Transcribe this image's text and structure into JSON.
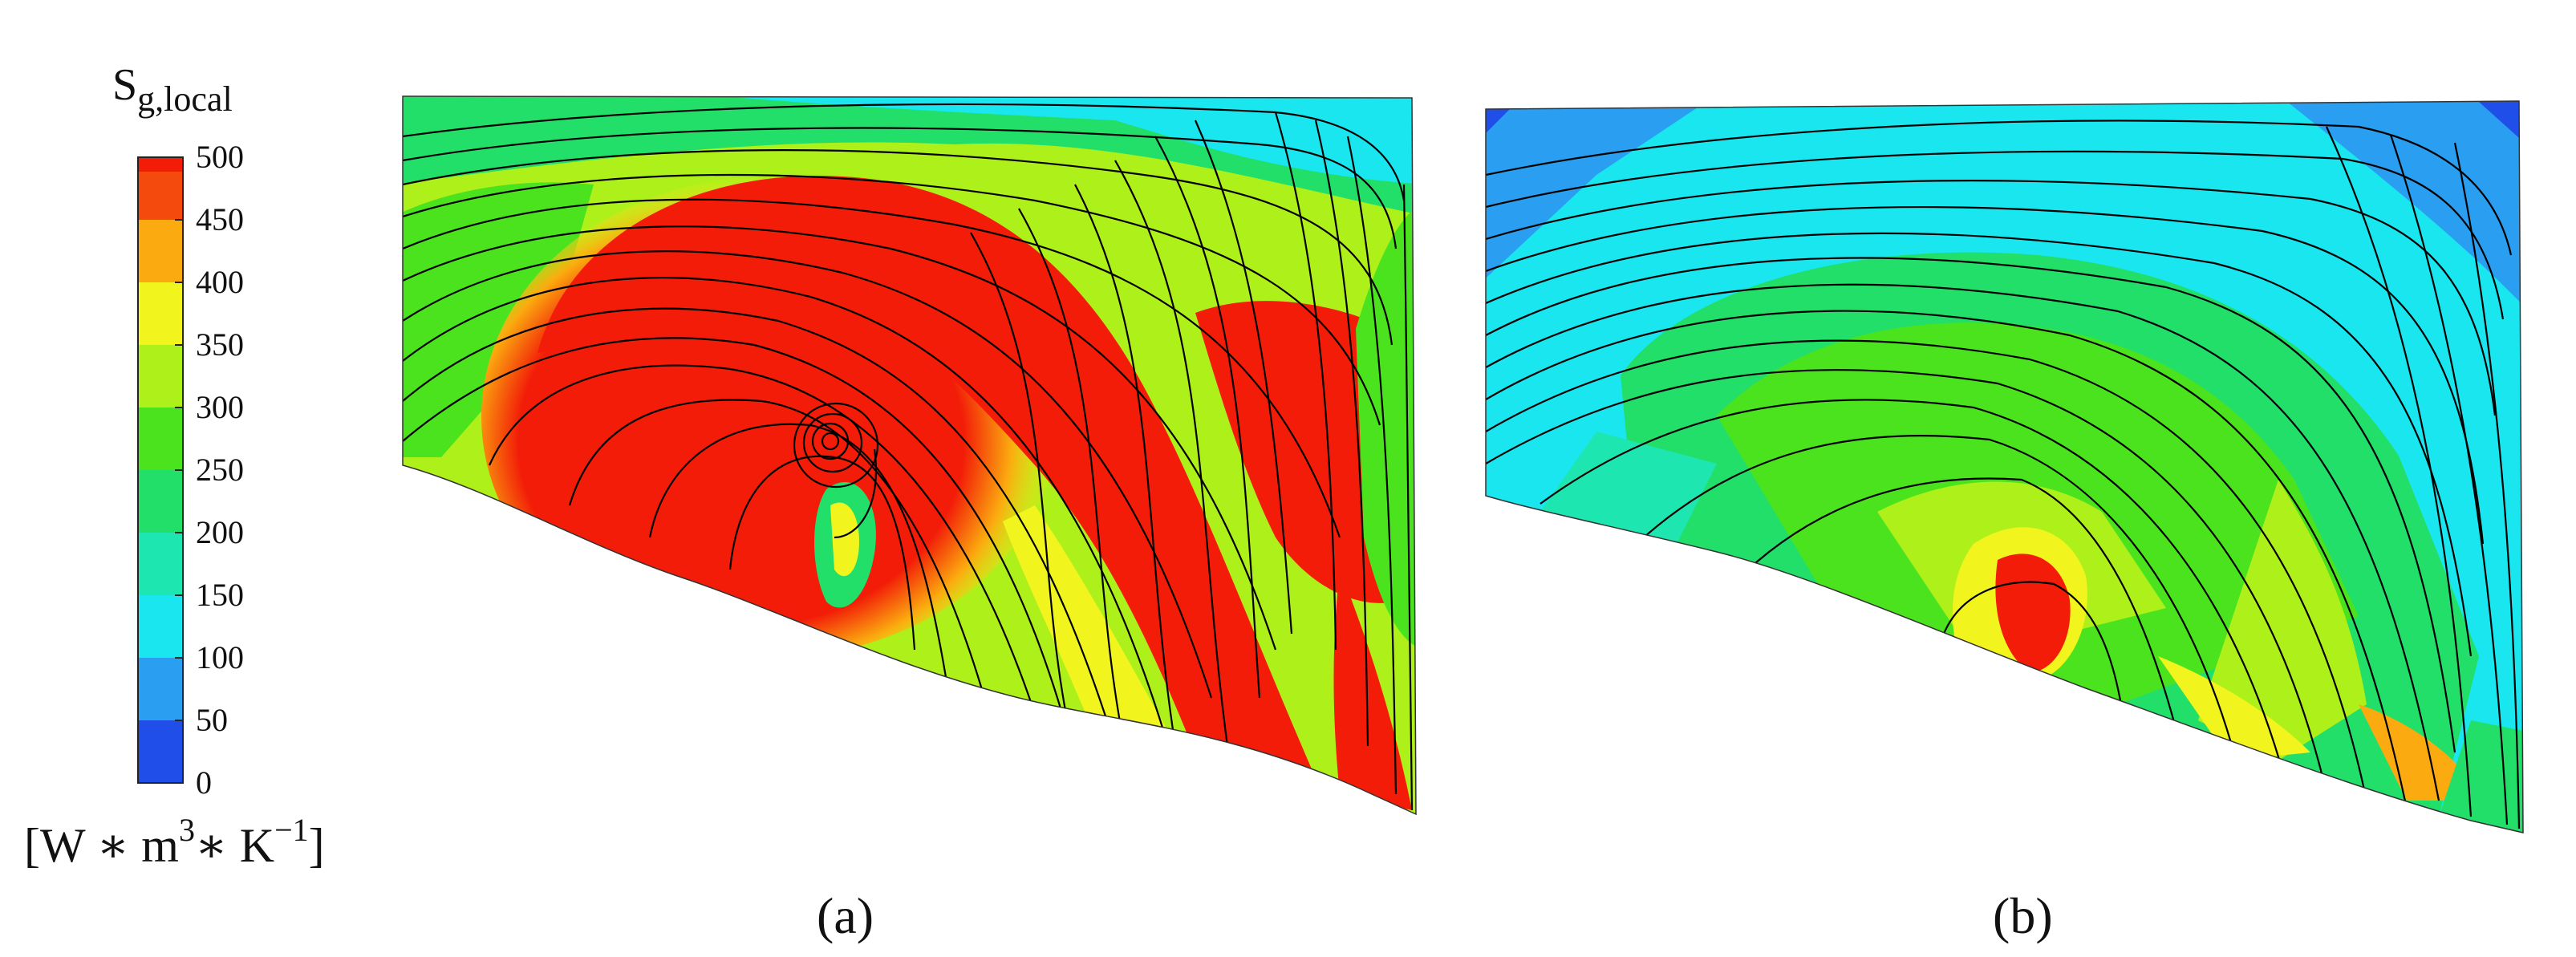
{
  "colorbar": {
    "title_main": "S",
    "title_sub": "g,local",
    "ticks": [
      "500",
      "450",
      "400",
      "350",
      "300",
      "250",
      "200",
      "150",
      "100",
      "50",
      "0"
    ],
    "range": [
      0,
      500
    ],
    "bands": [
      {
        "from": 0,
        "to": 50,
        "color": "#1f4fe8"
      },
      {
        "from": 50,
        "to": 100,
        "color": "#2a9ef0"
      },
      {
        "from": 100,
        "to": 150,
        "color": "#19e6ee"
      },
      {
        "from": 150,
        "to": 200,
        "color": "#1ee6b0"
      },
      {
        "from": 200,
        "to": 250,
        "color": "#22df69"
      },
      {
        "from": 250,
        "to": 300,
        "color": "#4ae31e"
      },
      {
        "from": 300,
        "to": 350,
        "color": "#aef01a"
      },
      {
        "from": 350,
        "to": 400,
        "color": "#f2f51d"
      },
      {
        "from": 400,
        "to": 450,
        "color": "#fbab0f"
      },
      {
        "from": 450,
        "to": 500,
        "color": "#f54a0d"
      },
      {
        "from": 500,
        "to": 500,
        "color": "#f21c08"
      }
    ],
    "unit_text": "[W ∗ m",
    "unit_exp1": "3",
    "unit_mid": "∗ K",
    "unit_exp2": "−1",
    "unit_close": "]"
  },
  "panels": [
    {
      "label": "(a)",
      "dominant": "high"
    },
    {
      "label": "(b)",
      "dominant": "low"
    }
  ]
}
